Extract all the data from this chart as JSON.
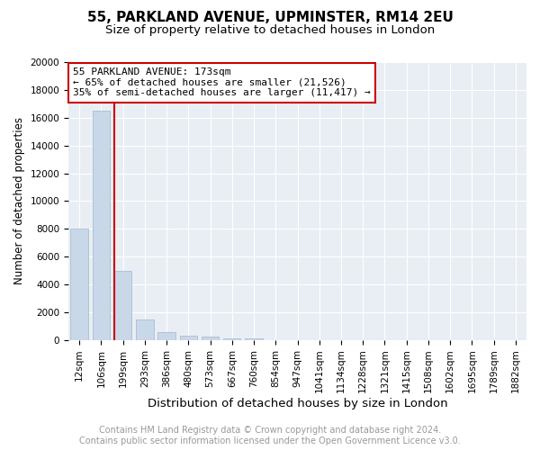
{
  "title": "55, PARKLAND AVENUE, UPMINSTER, RM14 2EU",
  "subtitle": "Size of property relative to detached houses in London",
  "xlabel": "Distribution of detached houses by size in London",
  "ylabel": "Number of detached properties",
  "categories": [
    "12sqm",
    "106sqm",
    "199sqm",
    "293sqm",
    "386sqm",
    "480sqm",
    "573sqm",
    "667sqm",
    "760sqm",
    "854sqm",
    "947sqm",
    "1041sqm",
    "1134sqm",
    "1228sqm",
    "1321sqm",
    "1415sqm",
    "1508sqm",
    "1602sqm",
    "1695sqm",
    "1789sqm",
    "1882sqm"
  ],
  "values": [
    8000,
    16500,
    5000,
    1500,
    600,
    350,
    250,
    150,
    100,
    30,
    5,
    2,
    1,
    0,
    0,
    0,
    0,
    0,
    0,
    0,
    0
  ],
  "bar_color": "#c8d8e8",
  "bar_edge_color": "#a0b8cc",
  "vline_x_index": 2,
  "vline_color": "#cc0000",
  "annotation_line1": "55 PARKLAND AVENUE: 173sqm",
  "annotation_line2": "← 65% of detached houses are smaller (21,526)",
  "annotation_line3": "35% of semi-detached houses are larger (11,417) →",
  "annotation_box_edgecolor": "#cc0000",
  "ylim": [
    0,
    20000
  ],
  "yticks": [
    0,
    2000,
    4000,
    6000,
    8000,
    10000,
    12000,
    14000,
    16000,
    18000,
    20000
  ],
  "grid_color": "#ffffff",
  "bg_color": "#e8eef4",
  "footer_line1": "Contains HM Land Registry data © Crown copyright and database right 2024.",
  "footer_line2": "Contains public sector information licensed under the Open Government Licence v3.0.",
  "title_fontsize": 11,
  "subtitle_fontsize": 9.5,
  "xlabel_fontsize": 9.5,
  "ylabel_fontsize": 8.5,
  "tick_fontsize": 7.5,
  "annotation_fontsize": 8,
  "footer_fontsize": 7
}
